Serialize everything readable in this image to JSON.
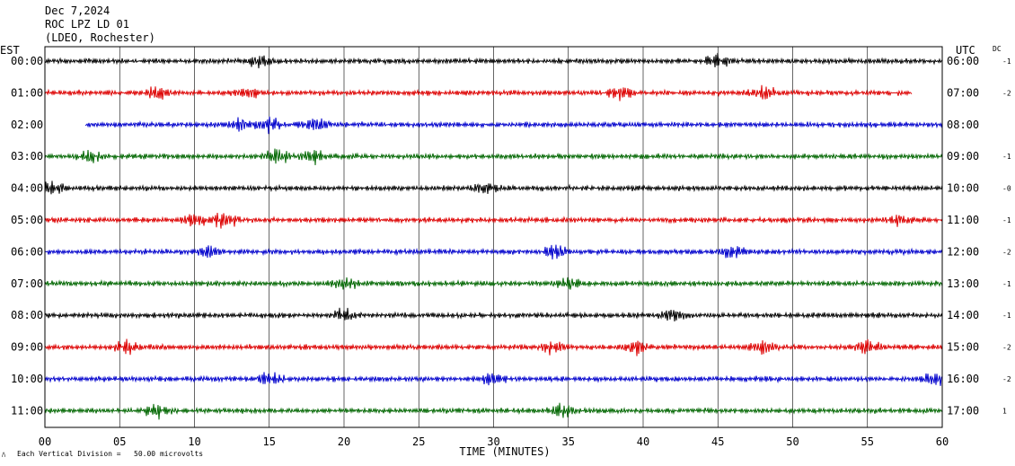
{
  "header": {
    "date": "Dec 7,2024",
    "station": "ROC LPZ LD 01",
    "network": "(LDEO, Rochester)"
  },
  "left_timezone": "EST",
  "right_timezone": "UTC",
  "dc_label": "DC",
  "footer": {
    "scale_text": "Each Vertical Division =   50.00 microvolts"
  },
  "chart_data": {
    "type": "line",
    "xlabel": "TIME (MINUTES)",
    "xlim": [
      0,
      60
    ],
    "x_ticks": [
      "00",
      "05",
      "10",
      "15",
      "20",
      "25",
      "30",
      "35",
      "40",
      "45",
      "50",
      "55",
      "60"
    ],
    "colors": [
      "#000000",
      "#dd0000",
      "#0000cc",
      "#006600"
    ],
    "rows": [
      {
        "est": "00:00",
        "utc": "06:00",
        "dc": "-1",
        "color": "#000000",
        "start_min": 0,
        "end_min": 60,
        "events": [
          [
            14.5,
            1.4
          ],
          [
            45,
            1.3
          ]
        ]
      },
      {
        "est": "01:00",
        "utc": "07:00",
        "dc": "-2",
        "color": "#dd0000",
        "start_min": 0,
        "end_min": 58,
        "events": [
          [
            7.5,
            1.5
          ],
          [
            13.5,
            1.3
          ],
          [
            38.5,
            1.6
          ],
          [
            48,
            1.4
          ]
        ]
      },
      {
        "est": "02:00",
        "utc": "08:00",
        "dc": "",
        "color": "#0000cc",
        "start_min": 2.7,
        "end_min": 60,
        "events": [
          [
            13,
            1.5
          ],
          [
            15,
            1.6
          ],
          [
            18,
            2.0
          ]
        ]
      },
      {
        "est": "03:00",
        "utc": "09:00",
        "dc": "-1",
        "color": "#006600",
        "start_min": 0,
        "end_min": 60,
        "events": [
          [
            3,
            1.3
          ],
          [
            15.5,
            1.5
          ],
          [
            18,
            1.4
          ]
        ]
      },
      {
        "est": "04:00",
        "utc": "10:00",
        "dc": "-0",
        "color": "#000000",
        "start_min": 0,
        "end_min": 60,
        "events": [
          [
            0.5,
            1.4
          ],
          [
            29.5,
            1.3
          ]
        ]
      },
      {
        "est": "05:00",
        "utc": "11:00",
        "dc": "-1",
        "color": "#dd0000",
        "start_min": 0,
        "end_min": 60,
        "events": [
          [
            10,
            1.5
          ],
          [
            12,
            2.0
          ],
          [
            57,
            1.3
          ]
        ]
      },
      {
        "est": "06:00",
        "utc": "12:00",
        "dc": "-2",
        "color": "#0000cc",
        "start_min": 0,
        "end_min": 60,
        "events": [
          [
            11,
            1.3
          ],
          [
            34,
            1.4
          ],
          [
            46,
            1.3
          ]
        ]
      },
      {
        "est": "07:00",
        "utc": "13:00",
        "dc": "-1",
        "color": "#006600",
        "start_min": 0,
        "end_min": 60,
        "events": [
          [
            20,
            1.5
          ],
          [
            35,
            1.3
          ]
        ]
      },
      {
        "est": "08:00",
        "utc": "14:00",
        "dc": "-1",
        "color": "#000000",
        "start_min": 0,
        "end_min": 60,
        "events": [
          [
            20,
            1.6
          ],
          [
            42,
            1.3
          ]
        ]
      },
      {
        "est": "09:00",
        "utc": "15:00",
        "dc": "-2",
        "color": "#dd0000",
        "start_min": 0,
        "end_min": 60,
        "events": [
          [
            5.5,
            1.5
          ],
          [
            34,
            1.4
          ],
          [
            39.5,
            1.5
          ],
          [
            48,
            1.4
          ],
          [
            55,
            1.3
          ]
        ]
      },
      {
        "est": "10:00",
        "utc": "16:00",
        "dc": "-2",
        "color": "#0000cc",
        "start_min": 0,
        "end_min": 60,
        "events": [
          [
            15,
            1.6
          ],
          [
            30,
            1.3
          ],
          [
            59.5,
            1.3
          ]
        ]
      },
      {
        "est": "11:00",
        "utc": "17:00",
        "dc": "1",
        "color": "#006600",
        "start_min": 0,
        "end_min": 60,
        "events": [
          [
            7.5,
            1.5
          ],
          [
            34.5,
            1.5
          ]
        ]
      }
    ],
    "grid": true,
    "legend": "none"
  }
}
